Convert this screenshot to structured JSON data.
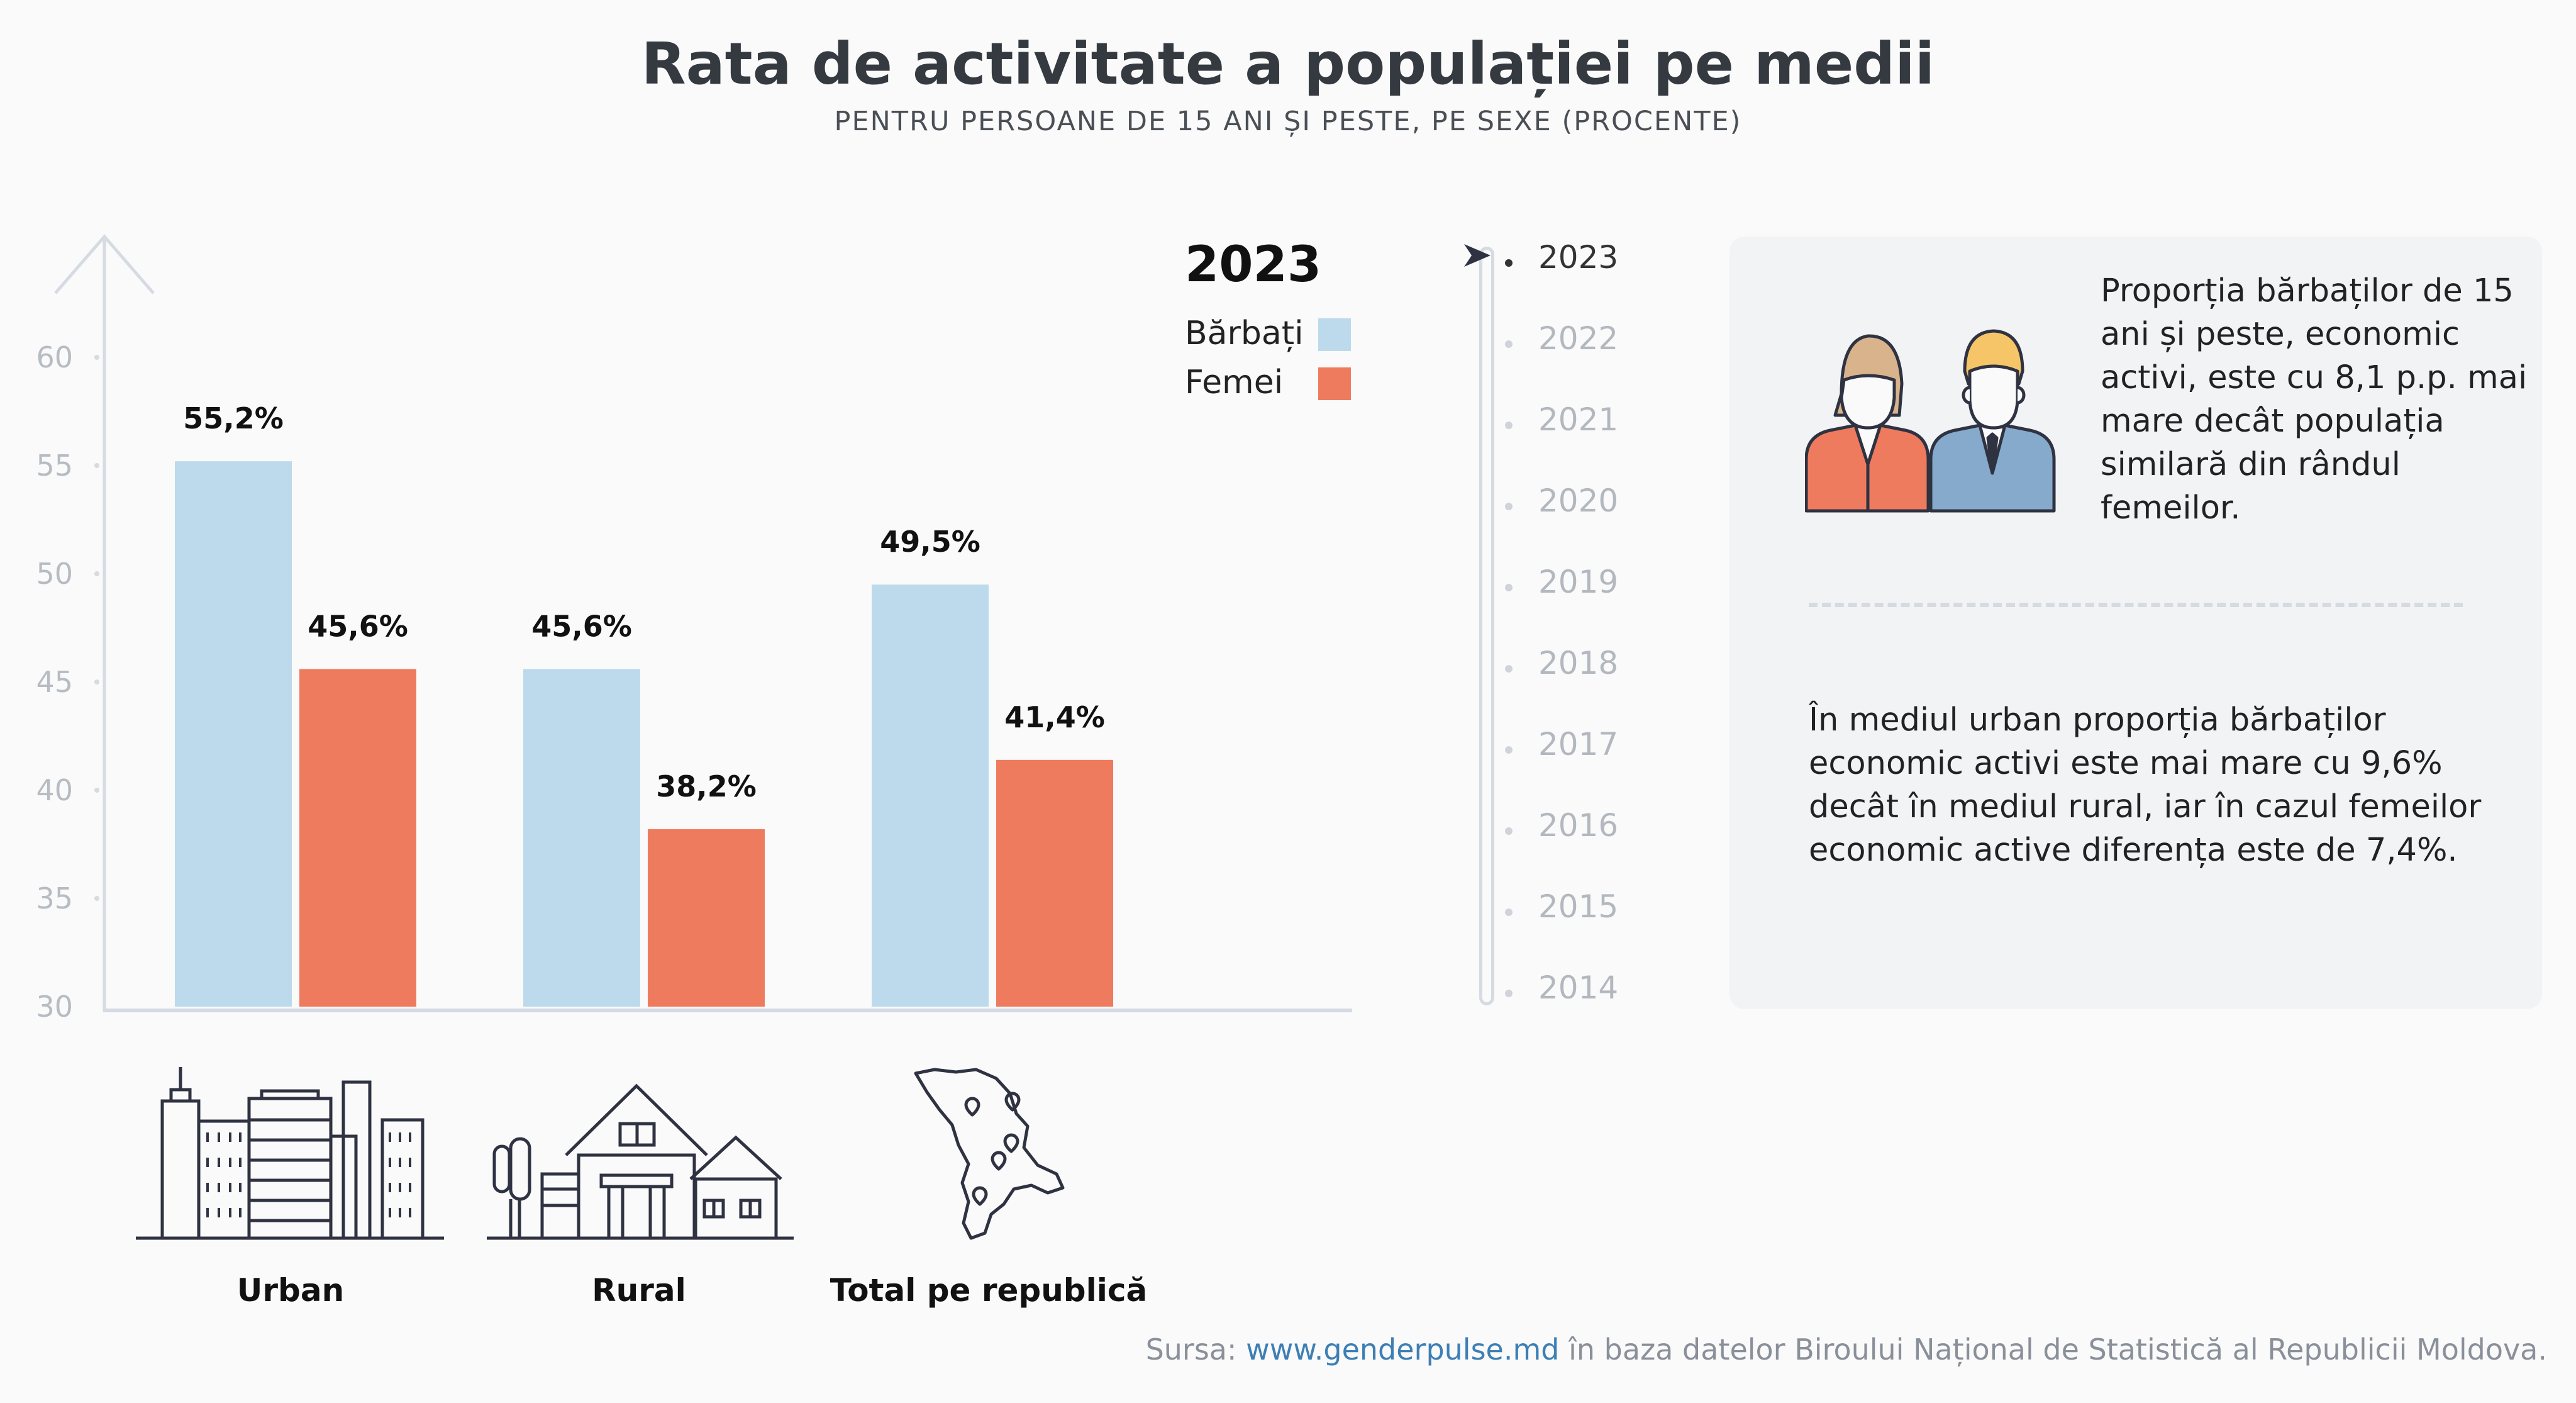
{
  "title": "Rata de activitate a populației pe medii",
  "subtitle": "PENTRU PERSOANE DE 15 ANI ȘI PESTE, PE SEXE (PROCENTE)",
  "legend": {
    "year": "2023",
    "men": "Bărbați",
    "women": "Femei"
  },
  "colors": {
    "men": "#bcdaec",
    "women": "#ef7b5e",
    "axis": "#d6dbe1",
    "icon": "#2f3341"
  },
  "chart_data": {
    "type": "bar",
    "categories": [
      "Urban",
      "Rural",
      "Total pe republică"
    ],
    "series": [
      {
        "name": "Bărbați",
        "values": [
          55.2,
          45.6,
          49.5
        ],
        "labels": [
          "55,2%",
          "45,6%",
          "49,5%"
        ]
      },
      {
        "name": "Femei",
        "values": [
          45.6,
          38.2,
          41.4
        ],
        "labels": [
          "45,6%",
          "38,2%",
          "41,4%"
        ]
      }
    ],
    "yticks": [
      "30",
      "35",
      "40",
      "45",
      "50",
      "55",
      "60"
    ],
    "ylim": [
      30,
      60
    ],
    "grid": false,
    "legend_position": "top-right"
  },
  "category_icons": [
    "city-buildings-icon",
    "village-houses-icon",
    "moldova-map-icon"
  ],
  "timeline": {
    "years": [
      "2023",
      "2022",
      "2021",
      "2020",
      "2019",
      "2018",
      "2017",
      "2016",
      "2015",
      "2014"
    ],
    "selected": "2023"
  },
  "info": {
    "icon": "man-woman-icon",
    "text1": "Proporția bărbaților de 15 ani și peste, economic activi, este cu 8,1 p.p. mai mare decât populația similară din rândul femeilor.",
    "text2": "În mediul urban proporția bărbaților economic activi este mai mare cu 9,6% decât în mediul rural, iar în cazul femeilor economic active diferența este de 7,4%."
  },
  "source": {
    "prefix": "Sursa: ",
    "link": "www.genderpulse.md",
    "suffix": " în baza datelor Biroului Național de Statistică al Republicii Moldova."
  }
}
